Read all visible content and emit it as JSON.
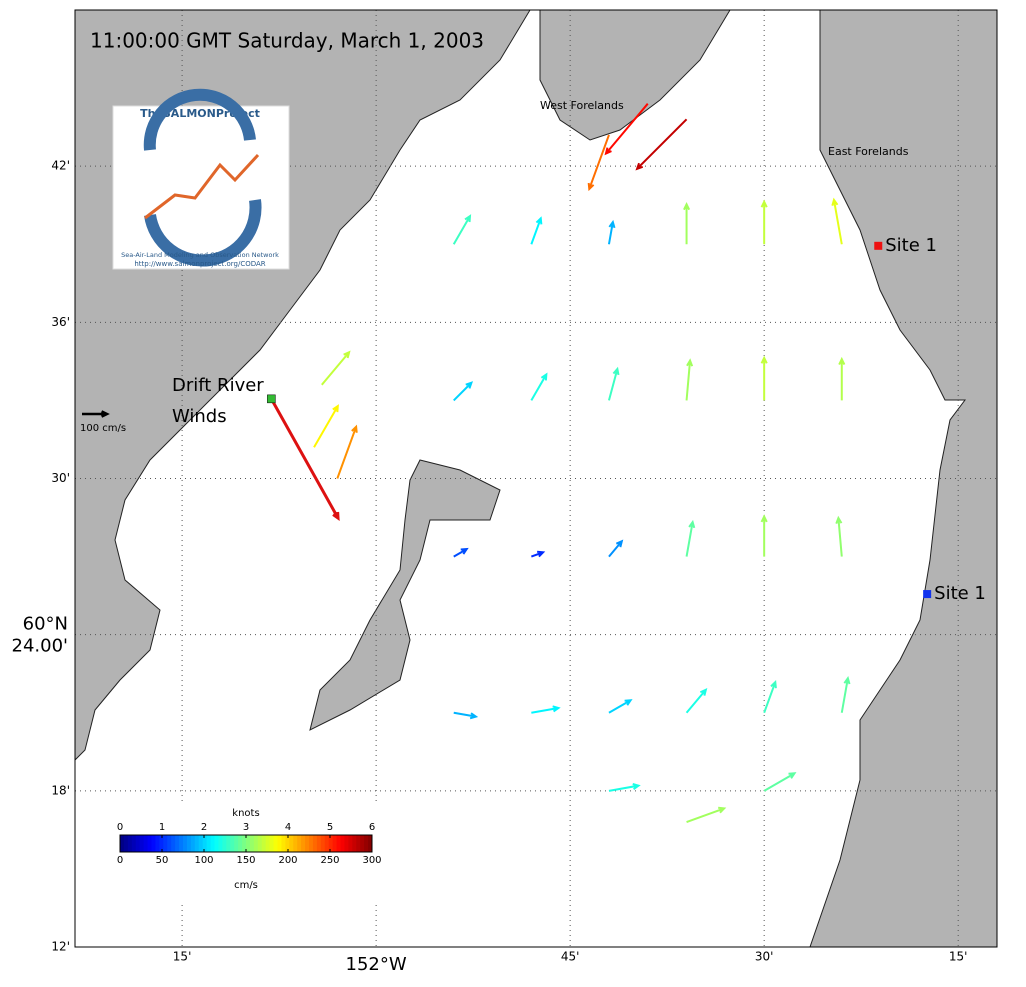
{
  "map": {
    "title": "11:00:00 GMT Saturday, March 1, 2003",
    "xlim": [
      152.388,
      151.2
    ],
    "ylim": [
      60.2,
      60.8
    ],
    "xticks": [
      {
        "value": 152.25,
        "label": "15'"
      },
      {
        "value": 152,
        "label": "152°W"
      },
      {
        "value": 151.75,
        "label": "45'"
      },
      {
        "value": 151.5,
        "label": "30'"
      },
      {
        "value": 151.25,
        "label": "15'"
      }
    ],
    "yticks": [
      {
        "value": 60.2,
        "label": "12'"
      },
      {
        "value": 60.3,
        "label": "18'"
      },
      {
        "value": 60.4,
        "label": "60°N 24.00'"
      },
      {
        "value": 60.5,
        "label": "30'"
      },
      {
        "value": 60.6,
        "label": "36'"
      },
      {
        "value": 60.7,
        "label": "42'"
      }
    ],
    "grid": true,
    "place_labels": [
      {
        "text": "West Forelands"
      },
      {
        "text": "East Forelands"
      }
    ],
    "sites": [
      {
        "name": "Site 1",
        "lon": 151.353,
        "lat": 60.649,
        "color": "#ee1111"
      },
      {
        "name": "Site 1",
        "lon": 151.29,
        "lat": 60.426,
        "color": "#1133ee"
      }
    ],
    "wind_station": {
      "name": "Drift River Winds",
      "lon": 152.135,
      "lat": 60.551
    },
    "scale_arrow": {
      "value": 100,
      "label": "100 cm/s"
    },
    "logo": {
      "title": "TheSALMONProject",
      "subtitle": "Sea-Air-Land Modeling and Observation Network",
      "url": "http://www.salmonproject.org/CODAR"
    },
    "colorbar": {
      "top_label": "knots",
      "bottom_label": "cm/s",
      "knots_lim": [
        0,
        6
      ],
      "knots_ticks": [
        0,
        1,
        2,
        3,
        4,
        5,
        6
      ],
      "cms_lim": [
        0,
        300
      ],
      "cms_ticks": [
        0,
        50,
        100,
        150,
        200,
        250,
        300
      ]
    },
    "currents": {
      "lon": [
        151.9,
        151.8,
        151.7,
        151.6,
        151.5,
        151.4,
        151.9,
        151.8,
        151.7,
        151.6,
        151.5,
        151.4,
        151.9,
        151.8,
        151.7,
        151.6,
        151.5,
        151.4,
        151.9,
        151.8,
        151.7,
        151.6,
        151.5,
        151.4,
        152.08,
        152.05,
        152.07,
        151.65,
        151.6,
        151.7,
        151.6,
        151.5,
        151.7
      ],
      "lat": [
        60.65,
        60.65,
        60.65,
        60.65,
        60.65,
        60.65,
        60.55,
        60.55,
        60.55,
        60.55,
        60.55,
        60.55,
        60.45,
        60.45,
        60.45,
        60.45,
        60.45,
        60.45,
        60.35,
        60.35,
        60.35,
        60.35,
        60.35,
        60.35,
        60.52,
        60.5,
        60.56,
        60.74,
        60.73,
        60.72,
        60.28,
        60.3,
        60.3
      ],
      "speed": [
        130,
        110,
        90,
        160,
        170,
        180,
        100,
        120,
        130,
        160,
        170,
        165,
        60,
        50,
        80,
        140,
        160,
        155,
        90,
        110,
        100,
        120,
        130,
        140,
        190,
        220,
        170,
        260,
        280,
        230,
        160,
        140,
        120
      ],
      "direction": [
        30,
        20,
        10,
        0,
        0,
        350,
        45,
        30,
        15,
        5,
        0,
        0,
        60,
        70,
        40,
        10,
        0,
        355,
        100,
        80,
        60,
        40,
        20,
        10,
        30,
        20,
        40,
        220,
        225,
        200,
        70,
        60,
        80
      ]
    }
  }
}
